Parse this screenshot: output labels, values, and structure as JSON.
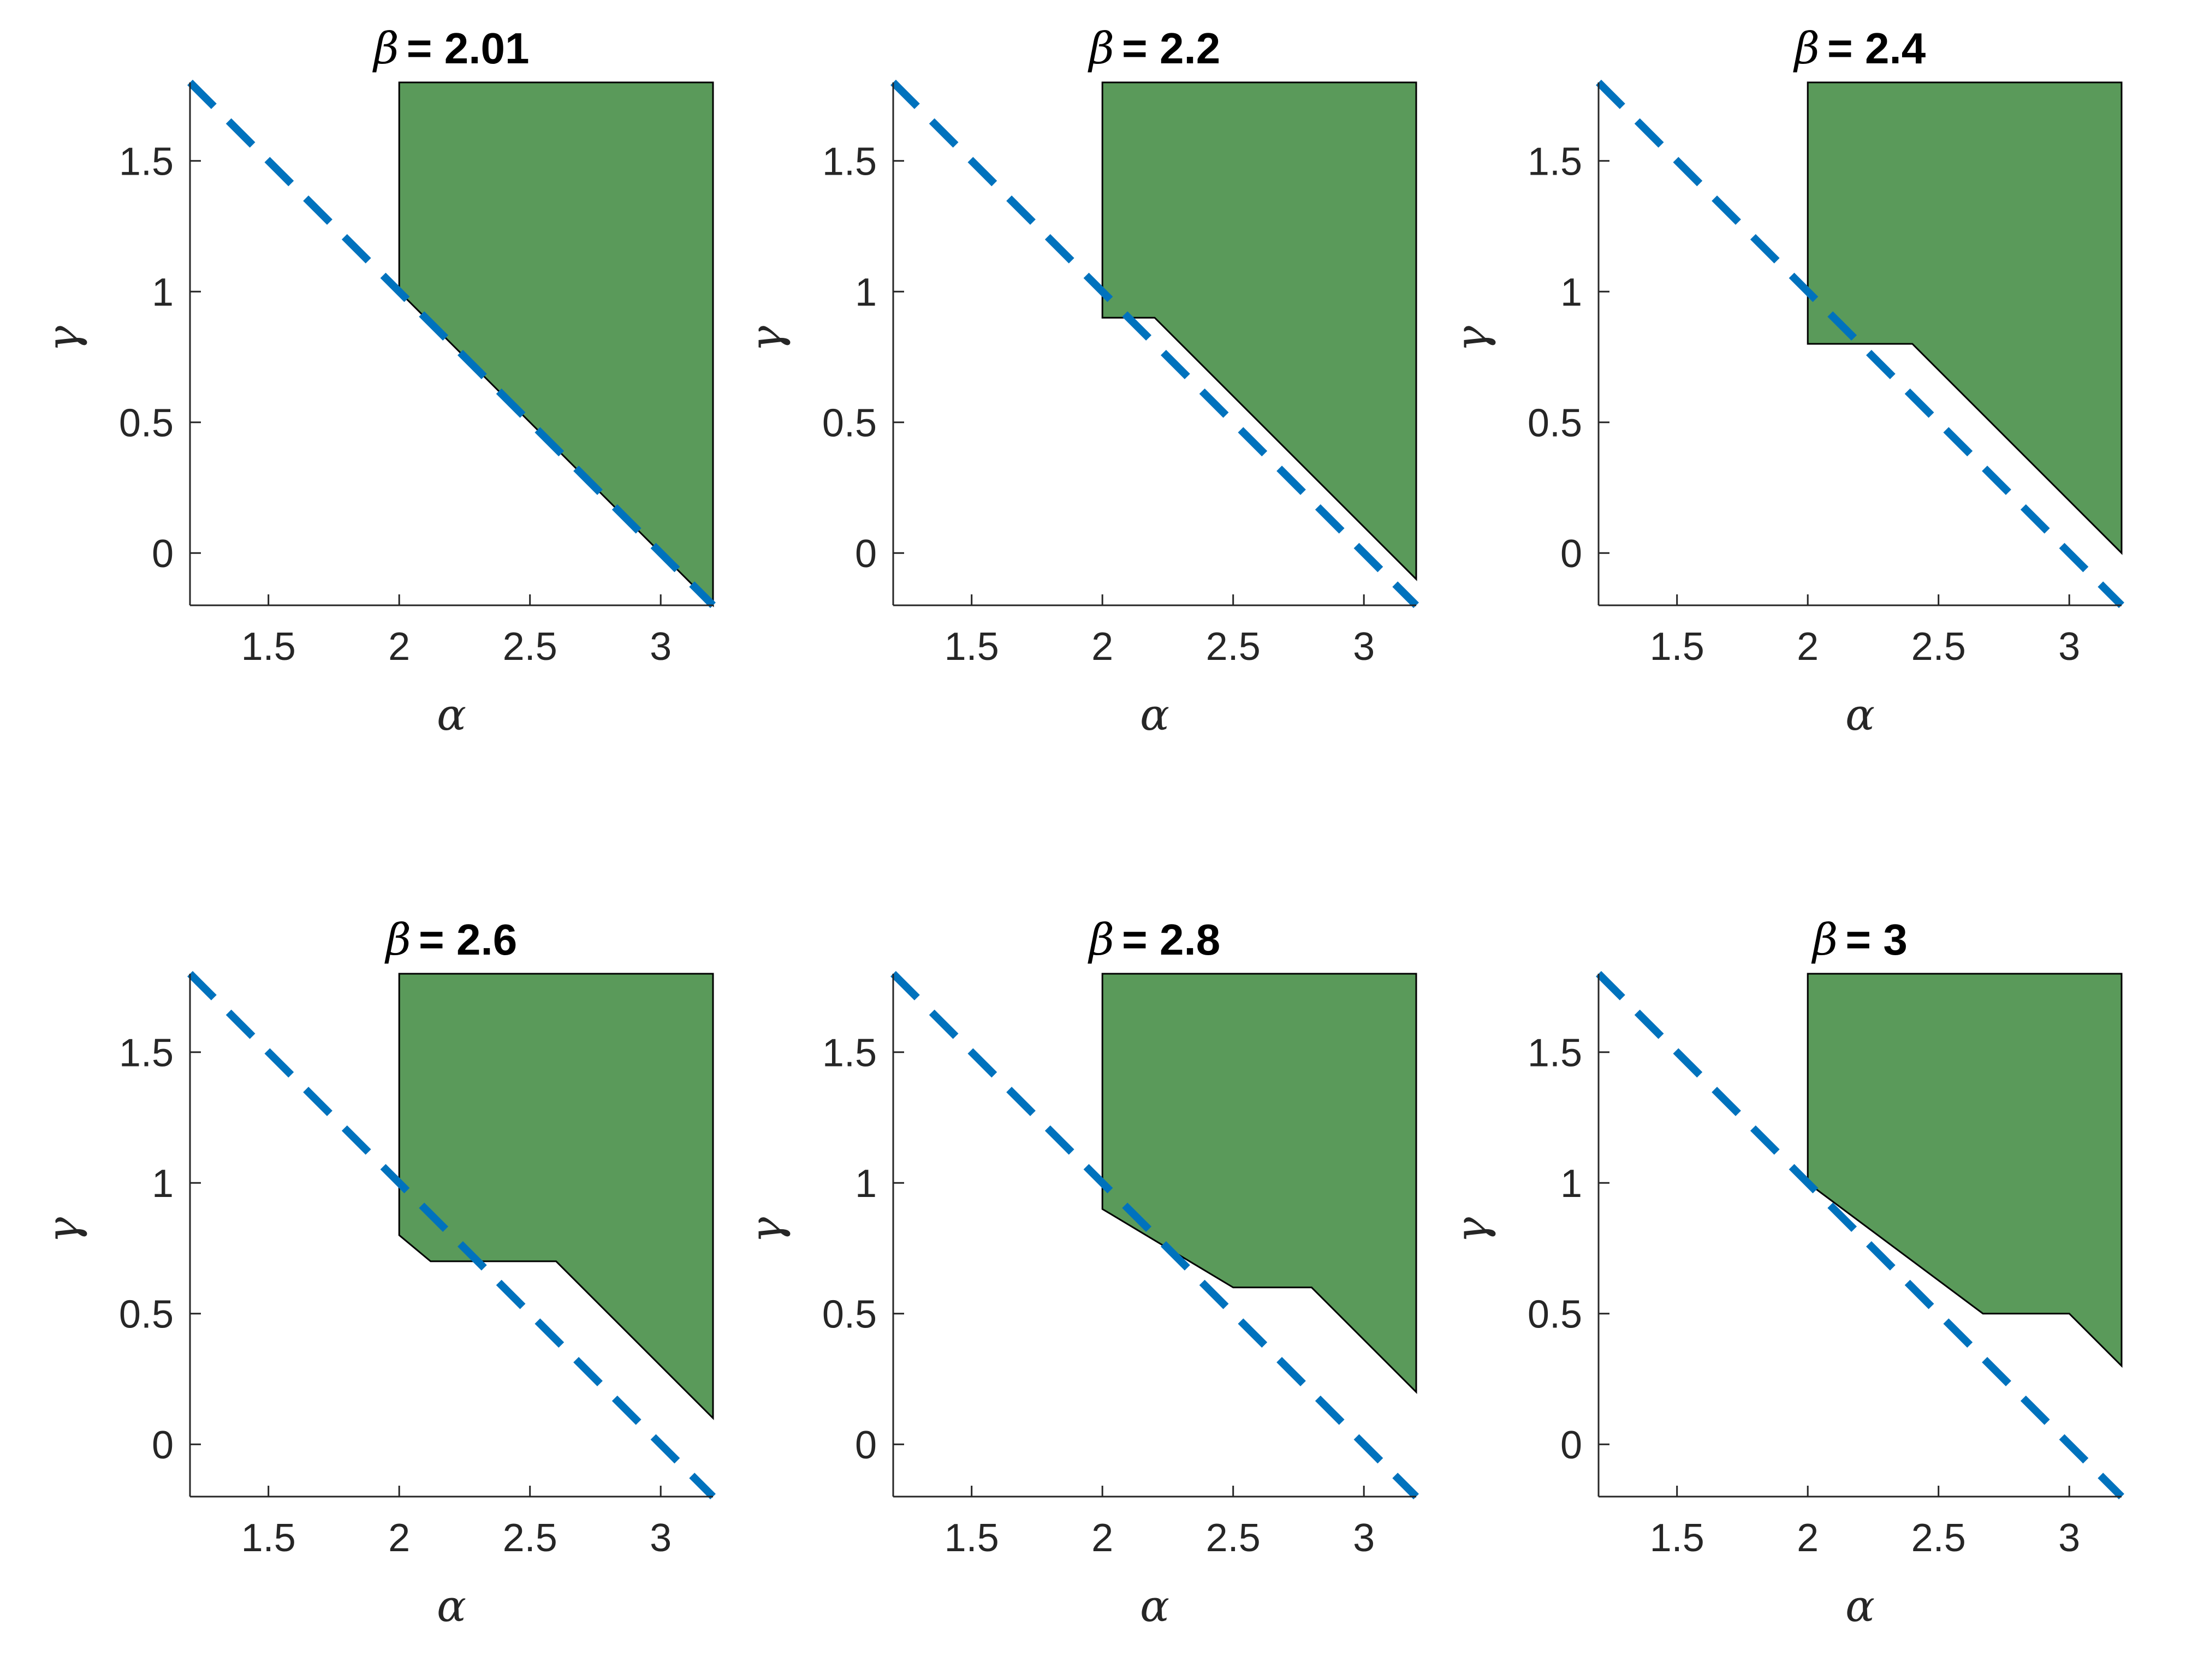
{
  "colors": {
    "feasible_fill": "#5a9a5a",
    "boundary": "#000000",
    "dashed_line": "#0072bd",
    "axis": "#262626"
  },
  "chart_data": [
    {
      "type": "area",
      "title_prefix": "β",
      "title_value": "= 2.01",
      "xlabel": "α",
      "ylabel": "γ",
      "xlim": [
        1.2,
        3.2
      ],
      "ylim": [
        -0.2,
        1.8
      ],
      "xticks": [
        1.5,
        2,
        2.5,
        3
      ],
      "xtick_labels": [
        "1.5",
        "2",
        "2.5",
        "3"
      ],
      "yticks": [
        0,
        0.5,
        1,
        1.5
      ],
      "ytick_labels": [
        "0",
        "0.5",
        "1",
        "1.5"
      ],
      "region": [
        [
          2,
          1.8
        ],
        [
          2,
          1.0
        ],
        [
          3.2,
          -0.2
        ],
        [
          3.2,
          1.8
        ]
      ],
      "dashed_line": [
        [
          1.2,
          1.8
        ],
        [
          3.2,
          -0.2
        ]
      ]
    },
    {
      "type": "area",
      "title_prefix": "β",
      "title_value": "= 2.2",
      "xlabel": "α",
      "ylabel": "γ",
      "xlim": [
        1.2,
        3.2
      ],
      "ylim": [
        -0.2,
        1.8
      ],
      "xticks": [
        1.5,
        2,
        2.5,
        3
      ],
      "xtick_labels": [
        "1.5",
        "2",
        "2.5",
        "3"
      ],
      "yticks": [
        0,
        0.5,
        1,
        1.5
      ],
      "ytick_labels": [
        "0",
        "0.5",
        "1",
        "1.5"
      ],
      "region": [
        [
          2,
          1.8
        ],
        [
          2,
          0.9
        ],
        [
          2.2,
          0.9
        ],
        [
          3.2,
          -0.1
        ],
        [
          3.2,
          1.8
        ]
      ],
      "dashed_line": [
        [
          1.2,
          1.8
        ],
        [
          3.2,
          -0.2
        ]
      ]
    },
    {
      "type": "area",
      "title_prefix": "β",
      "title_value": "= 2.4",
      "xlabel": "α",
      "ylabel": "γ",
      "xlim": [
        1.2,
        3.2
      ],
      "ylim": [
        -0.2,
        1.8
      ],
      "xticks": [
        1.5,
        2,
        2.5,
        3
      ],
      "xtick_labels": [
        "1.5",
        "2",
        "2.5",
        "3"
      ],
      "yticks": [
        0,
        0.5,
        1,
        1.5
      ],
      "ytick_labels": [
        "0",
        "0.5",
        "1",
        "1.5"
      ],
      "region": [
        [
          2,
          1.8
        ],
        [
          2,
          0.8
        ],
        [
          2.4,
          0.8
        ],
        [
          3.2,
          0.0
        ],
        [
          3.2,
          1.8
        ]
      ],
      "dashed_line": [
        [
          1.2,
          1.8
        ],
        [
          3.2,
          -0.2
        ]
      ]
    },
    {
      "type": "area",
      "title_prefix": "β",
      "title_value": "= 2.6",
      "xlabel": "α",
      "ylabel": "γ",
      "xlim": [
        1.2,
        3.2
      ],
      "ylim": [
        -0.2,
        1.8
      ],
      "xticks": [
        1.5,
        2,
        2.5,
        3
      ],
      "xtick_labels": [
        "1.5",
        "2",
        "2.5",
        "3"
      ],
      "yticks": [
        0,
        0.5,
        1,
        1.5
      ],
      "ytick_labels": [
        "0",
        "0.5",
        "1",
        "1.5"
      ],
      "region": [
        [
          2,
          1.8
        ],
        [
          2,
          0.8
        ],
        [
          2.12,
          0.7
        ],
        [
          2.6,
          0.7
        ],
        [
          3.2,
          0.1
        ],
        [
          3.2,
          1.8
        ]
      ],
      "dashed_line": [
        [
          1.2,
          1.8
        ],
        [
          3.2,
          -0.2
        ]
      ]
    },
    {
      "type": "area",
      "title_prefix": "β",
      "title_value": "= 2.8",
      "xlabel": "α",
      "ylabel": "γ",
      "xlim": [
        1.2,
        3.2
      ],
      "ylim": [
        -0.2,
        1.8
      ],
      "xticks": [
        1.5,
        2,
        2.5,
        3
      ],
      "xtick_labels": [
        "1.5",
        "2",
        "2.5",
        "3"
      ],
      "yticks": [
        0,
        0.5,
        1,
        1.5
      ],
      "ytick_labels": [
        "0",
        "0.5",
        "1",
        "1.5"
      ],
      "region": [
        [
          2,
          1.8
        ],
        [
          2,
          0.9
        ],
        [
          2.5,
          0.6
        ],
        [
          2.8,
          0.6
        ],
        [
          3.2,
          0.2
        ],
        [
          3.2,
          1.8
        ]
      ],
      "dashed_line": [
        [
          1.2,
          1.8
        ],
        [
          3.2,
          -0.2
        ]
      ]
    },
    {
      "type": "area",
      "title_prefix": "β",
      "title_value": "= 3",
      "xlabel": "α",
      "ylabel": "γ",
      "xlim": [
        1.2,
        3.2
      ],
      "ylim": [
        -0.2,
        1.8
      ],
      "xticks": [
        1.5,
        2,
        2.5,
        3
      ],
      "xtick_labels": [
        "1.5",
        "2",
        "2.5",
        "3"
      ],
      "yticks": [
        0,
        0.5,
        1,
        1.5
      ],
      "ytick_labels": [
        "0",
        "0.5",
        "1",
        "1.5"
      ],
      "region": [
        [
          2,
          1.8
        ],
        [
          2,
          1.0
        ],
        [
          2.67,
          0.5
        ],
        [
          3.0,
          0.5
        ],
        [
          3.2,
          0.3
        ],
        [
          3.2,
          1.8
        ]
      ],
      "dashed_line": [
        [
          1.2,
          1.8
        ],
        [
          3.2,
          -0.2
        ]
      ]
    }
  ]
}
